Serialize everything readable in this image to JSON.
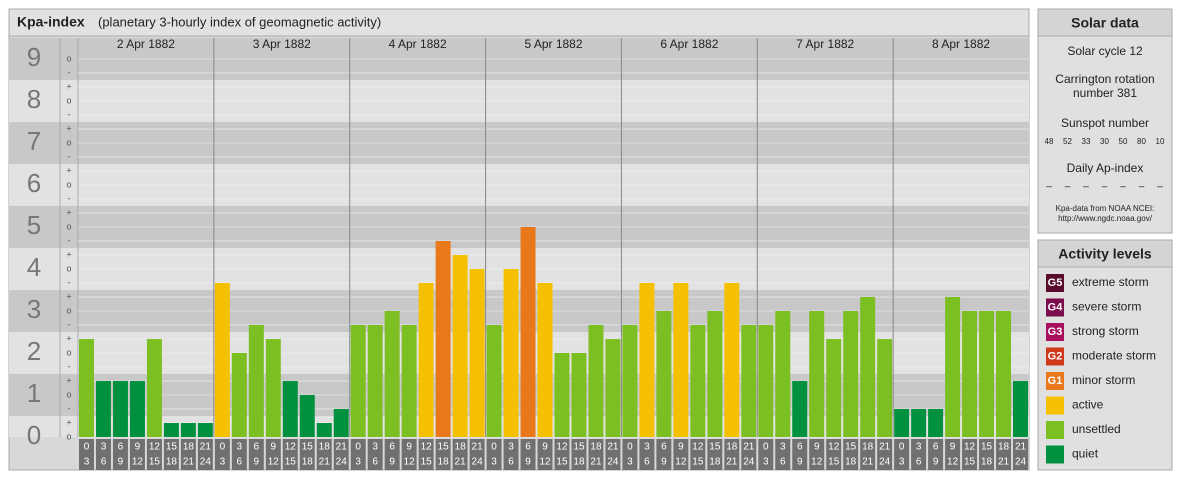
{
  "chart_data": {
    "type": "bar",
    "title": "Kpa-index",
    "subtitle": "(planetary 3-hourly index of geomagnetic activity)",
    "days": [
      "2 Apr 1882",
      "3 Apr 1882",
      "4 Apr 1882",
      "5 Apr 1882",
      "6 Apr 1882",
      "7 Apr 1882",
      "8 Apr 1882"
    ],
    "hour_ranges": [
      [
        0,
        3
      ],
      [
        3,
        6
      ],
      [
        6,
        9
      ],
      [
        9,
        12
      ],
      [
        12,
        15
      ],
      [
        15,
        18
      ],
      [
        18,
        21
      ],
      [
        21,
        24
      ]
    ],
    "values": [
      2.333,
      1.333,
      1.333,
      1.333,
      2.333,
      0.333,
      0.333,
      0.333,
      3.667,
      2,
      2.667,
      2.333,
      1.333,
      1,
      0.333,
      0.667,
      2.667,
      2.667,
      3,
      2.667,
      3.667,
      4.667,
      4.333,
      4,
      2.667,
      4,
      5,
      3.667,
      2,
      2,
      2.667,
      2.333,
      2.667,
      3.667,
      3,
      3.667,
      2.667,
      3,
      3.667,
      2.667,
      2.667,
      3,
      1.333,
      3,
      2.333,
      3,
      3.333,
      2.333,
      0.667,
      0.667,
      0.667,
      3.333,
      3,
      3,
      3,
      1.333
    ],
    "colors": [
      "#7cbf23",
      "#00913f",
      "#00913f",
      "#00913f",
      "#7cbf23",
      "#00913f",
      "#00913f",
      "#00913f",
      "#f5c000",
      "#7cbf23",
      "#7cbf23",
      "#7cbf23",
      "#00913f",
      "#00913f",
      "#00913f",
      "#00913f",
      "#7cbf23",
      "#7cbf23",
      "#7cbf23",
      "#7cbf23",
      "#f5c000",
      "#e8781a",
      "#f5c000",
      "#f5c000",
      "#7cbf23",
      "#f5c000",
      "#e8781a",
      "#f5c000",
      "#7cbf23",
      "#7cbf23",
      "#7cbf23",
      "#7cbf23",
      "#7cbf23",
      "#f5c000",
      "#7cbf23",
      "#f5c000",
      "#7cbf23",
      "#7cbf23",
      "#f5c000",
      "#7cbf23",
      "#7cbf23",
      "#7cbf23",
      "#00913f",
      "#7cbf23",
      "#7cbf23",
      "#7cbf23",
      "#7cbf23",
      "#7cbf23",
      "#00913f",
      "#00913f",
      "#00913f",
      "#7cbf23",
      "#7cbf23",
      "#7cbf23",
      "#7cbf23",
      "#00913f"
    ],
    "ylim": [
      0,
      9.5
    ],
    "yticks": [
      0,
      1,
      2,
      3,
      4,
      5,
      6,
      7,
      8,
      9
    ],
    "minor_ticks": [
      {
        "value": 9,
        "label": "o"
      },
      {
        "value": 8.667,
        "label": "-"
      },
      {
        "value": 8.333,
        "label": "+"
      },
      {
        "value": 8,
        "label": "o"
      },
      {
        "value": 7.667,
        "label": "-"
      },
      {
        "value": 7.333,
        "label": "+"
      },
      {
        "value": 7,
        "label": "o"
      },
      {
        "value": 6.667,
        "label": "-"
      },
      {
        "value": 6.333,
        "label": "+"
      },
      {
        "value": 6,
        "label": "o"
      },
      {
        "value": 5.667,
        "label": "-"
      },
      {
        "value": 5.333,
        "label": "+"
      },
      {
        "value": 5,
        "label": "o"
      },
      {
        "value": 4.667,
        "label": "-"
      },
      {
        "value": 4.333,
        "label": "+"
      },
      {
        "value": 4,
        "label": "o"
      },
      {
        "value": 3.667,
        "label": "-"
      },
      {
        "value": 3.333,
        "label": "+"
      },
      {
        "value": 3,
        "label": "o"
      },
      {
        "value": 2.667,
        "label": "-"
      },
      {
        "value": 2.333,
        "label": "+"
      },
      {
        "value": 2,
        "label": "o"
      },
      {
        "value": 1.667,
        "label": "-"
      },
      {
        "value": 1.333,
        "label": "+"
      },
      {
        "value": 1,
        "label": "o"
      },
      {
        "value": 0.667,
        "label": "-"
      },
      {
        "value": 0.333,
        "label": "+"
      },
      {
        "value": 0,
        "label": "o"
      }
    ],
    "grid": true
  },
  "solar_data": {
    "title": "Solar data",
    "solar_cycle": "Solar cycle 12",
    "carrington": "Carrington rotation number 381",
    "sunspot_label": "Sunspot number",
    "sunspot_values": [
      48,
      52,
      33,
      30,
      50,
      80,
      10
    ],
    "ap_label": "Daily Ap-index",
    "ap_values": [
      "–",
      "–",
      "–",
      "–",
      "–",
      "–",
      "–"
    ],
    "source_1": "Kpa-data from NOAA NCEI:",
    "source_2": "http://www.ngdc.noaa.gov/"
  },
  "activity_levels": {
    "title": "Activity levels",
    "items": [
      {
        "code": "G5",
        "name": "extreme storm",
        "color": "#5a0a2a"
      },
      {
        "code": "G4",
        "name": "severe storm",
        "color": "#7c0c4c"
      },
      {
        "code": "G3",
        "name": "strong storm",
        "color": "#a8105e"
      },
      {
        "code": "G2",
        "name": "moderate storm",
        "color": "#d0381c"
      },
      {
        "code": "G1",
        "name": "minor storm",
        "color": "#e8781a"
      },
      {
        "code": "",
        "name": "active",
        "color": "#f5c000"
      },
      {
        "code": "",
        "name": "unsettled",
        "color": "#7cbf23"
      },
      {
        "code": "",
        "name": "quiet",
        "color": "#00913f"
      }
    ]
  }
}
